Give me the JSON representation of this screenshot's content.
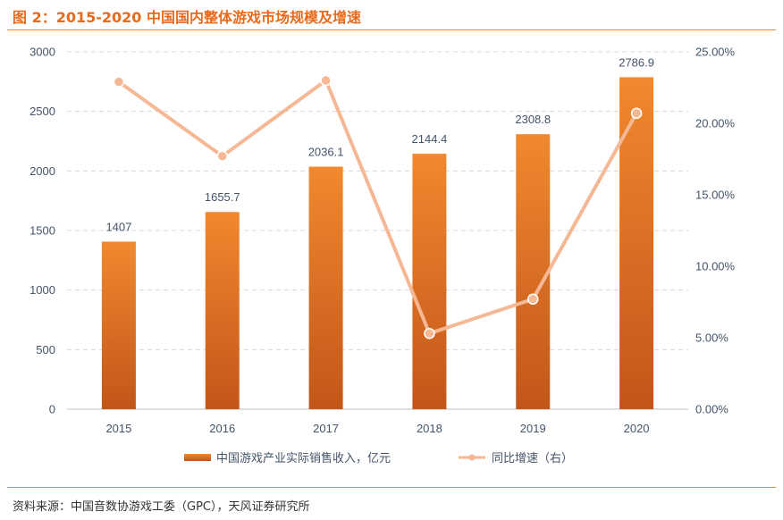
{
  "figure": {
    "title": "图 2：2015-2020 中国国内整体游戏市场规模及增速",
    "source": "资料来源：中国音数协游戏工委（GPC），天风证券研究所"
  },
  "colors": {
    "bar_top": "#f0892f",
    "bar_bottom": "#c2561a",
    "line": "#f6b894",
    "marker_fill": "#f6b894",
    "marker_stroke": "#ffffff",
    "axis_text": "#44546a",
    "grid": "#d9d9d9",
    "rule": "#ef8a3a",
    "title": "#ea6a1b"
  },
  "chart_data": {
    "type": "bar",
    "title": "2015-2020 中国国内整体游戏市场规模及增速",
    "categories": [
      "2015",
      "2016",
      "2017",
      "2018",
      "2019",
      "2020"
    ],
    "series": [
      {
        "name": "中国游戏产业实际销售收入，亿元",
        "type": "bar",
        "axis": "left",
        "values": [
          1407,
          1655.7,
          2036.1,
          2144.4,
          2308.8,
          2786.9
        ],
        "labels": [
          "1407",
          "1655.7",
          "2036.1",
          "2144.4",
          "2308.8",
          "2786.9"
        ]
      },
      {
        "name": "同比增速（右）",
        "type": "line",
        "axis": "right",
        "values": [
          22.9,
          17.7,
          23.0,
          5.3,
          7.7,
          20.7
        ]
      }
    ],
    "y_left": {
      "min": 0,
      "max": 3000,
      "ticks": [
        "0",
        "500",
        "1000",
        "1500",
        "2000",
        "2500",
        "3000"
      ]
    },
    "y_right": {
      "min": 0,
      "max": 25,
      "ticks": [
        "0.00%",
        "5.00%",
        "10.00%",
        "15.00%",
        "20.00%",
        "25.00%"
      ]
    },
    "grid": true,
    "legend": "bottom"
  }
}
